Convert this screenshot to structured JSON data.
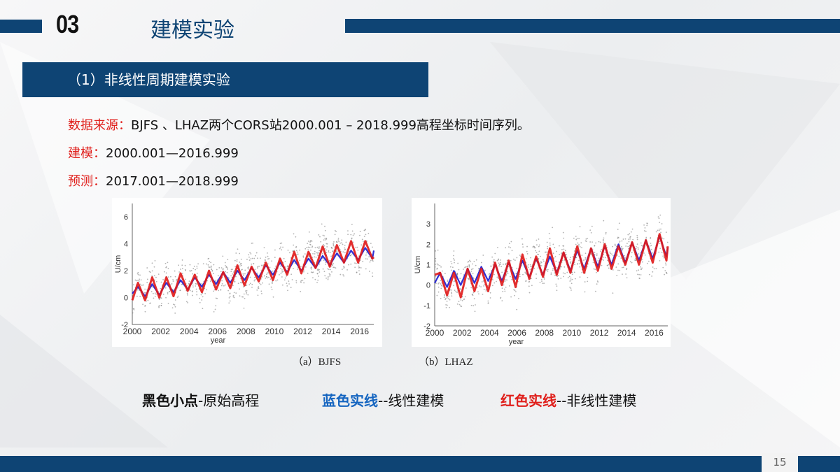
{
  "header": {
    "section_number": "03",
    "title": "建模实验"
  },
  "section_heading": "（1）非线性周期建模实验",
  "info": {
    "source_label": "数据来源：",
    "source_text": "BJFS 、LHAZ两个CORS站2000.001 – 2018.999高程坐标时间序列。",
    "model_label": "建模：",
    "model_text": "2000.001—2016.999",
    "predict_label": "预测：",
    "predict_text": "2017.001—2018.999"
  },
  "legend": {
    "black_bold": "黑色小点",
    "black_text": "-原始高程",
    "blue_bold": "蓝色实线",
    "blue_text": "--线性建模",
    "red_bold": "红色实线",
    "red_text": "--非线性建模"
  },
  "colors": {
    "brand": "#0e4474",
    "label_red": "#e0201c",
    "blue_line": "#1a1ad0",
    "red_line": "#e01818",
    "points": "#808080"
  },
  "page_number": "15",
  "chart_data": [
    {
      "type": "line",
      "caption": "（a）BJFS",
      "xlabel": "year",
      "ylabel": "U/cm",
      "xlim": [
        2000,
        2017
      ],
      "ylim": [
        -2,
        7
      ],
      "xticks": [
        "2000",
        "2002",
        "2004",
        "2006",
        "2008",
        "2010",
        "2012",
        "2014",
        "2016"
      ],
      "yticks": [
        "-2",
        "0",
        "2",
        "4",
        "6"
      ],
      "x": [
        2000,
        2000.4,
        2000.9,
        2001.4,
        2001.9,
        2002.4,
        2002.9,
        2003.4,
        2003.9,
        2004.4,
        2004.9,
        2005.4,
        2005.9,
        2006.4,
        2006.9,
        2007.4,
        2007.9,
        2008.4,
        2008.9,
        2009.4,
        2009.9,
        2010.4,
        2010.9,
        2011.4,
        2011.9,
        2012.4,
        2012.9,
        2013.4,
        2013.9,
        2014.4,
        2014.9,
        2015.4,
        2015.9,
        2016.4,
        2016.9,
        2017
      ],
      "series": [
        {
          "color": "#1a1ad0",
          "values": [
            0.3,
            0.8,
            0.1,
            1.0,
            0.2,
            1.1,
            0.4,
            1.3,
            0.6,
            1.5,
            0.8,
            1.7,
            1.0,
            1.9,
            1.1,
            2.0,
            1.3,
            2.2,
            1.5,
            2.4,
            1.7,
            2.6,
            1.9,
            2.8,
            2.0,
            2.9,
            2.2,
            3.1,
            2.4,
            3.3,
            2.6,
            3.5,
            2.8,
            3.7,
            2.9,
            3.5
          ]
        },
        {
          "color": "#e01818",
          "values": [
            -0.2,
            1.1,
            -0.2,
            1.5,
            0.0,
            1.5,
            0.1,
            1.8,
            0.5,
            1.7,
            0.4,
            2.0,
            0.6,
            1.9,
            0.7,
            2.4,
            0.9,
            2.3,
            1.2,
            2.6,
            1.3,
            2.9,
            1.7,
            3.4,
            1.8,
            3.4,
            2.2,
            3.8,
            2.3,
            3.9,
            2.6,
            4.2,
            2.6,
            4.2,
            2.9,
            3.0
          ]
        }
      ]
    },
    {
      "type": "line",
      "caption": "（b）LHAZ",
      "xlabel": "year",
      "ylabel": "U/cm",
      "xlim": [
        2000,
        2017
      ],
      "ylim": [
        -2,
        4
      ],
      "xticks": [
        "2000",
        "2002",
        "2004",
        "2006",
        "2008",
        "2010",
        "2012",
        "2014",
        "2016"
      ],
      "yticks": [
        "-2",
        "-1",
        "0",
        "1",
        "2",
        "3"
      ],
      "x": [
        2000,
        2000.4,
        2000.9,
        2001.4,
        2001.9,
        2002.4,
        2002.9,
        2003.4,
        2003.9,
        2004.4,
        2004.9,
        2005.4,
        2005.9,
        2006.4,
        2006.9,
        2007.4,
        2007.9,
        2008.4,
        2008.9,
        2009.4,
        2009.9,
        2010.4,
        2010.9,
        2011.4,
        2011.9,
        2012.4,
        2012.9,
        2013.4,
        2013.9,
        2014.4,
        2014.9,
        2015.4,
        2015.9,
        2016.4,
        2016.9,
        2017
      ],
      "series": [
        {
          "color": "#1a1ad0",
          "values": [
            0.1,
            0.6,
            -0.1,
            0.7,
            0.0,
            0.8,
            0.1,
            0.9,
            0.2,
            1.0,
            0.2,
            1.1,
            0.3,
            1.2,
            0.4,
            1.3,
            0.5,
            1.4,
            0.6,
            1.6,
            0.7,
            1.7,
            0.8,
            1.8,
            0.9,
            1.9,
            1.0,
            2.0,
            1.1,
            2.1,
            1.2,
            2.2,
            1.3,
            2.4,
            1.4,
            1.8
          ]
        },
        {
          "color": "#e01818",
          "values": [
            0.5,
            0.6,
            -0.5,
            0.6,
            -0.6,
            0.8,
            -0.3,
            0.8,
            -0.3,
            1.1,
            0.0,
            1.2,
            -0.1,
            1.5,
            0.3,
            1.4,
            0.4,
            1.8,
            0.5,
            1.6,
            0.6,
            1.9,
            0.6,
            1.8,
            0.7,
            2.0,
            0.8,
            1.9,
            1.0,
            2.1,
            1.0,
            2.2,
            1.1,
            2.5,
            1.2,
            1.9
          ]
        }
      ]
    }
  ]
}
